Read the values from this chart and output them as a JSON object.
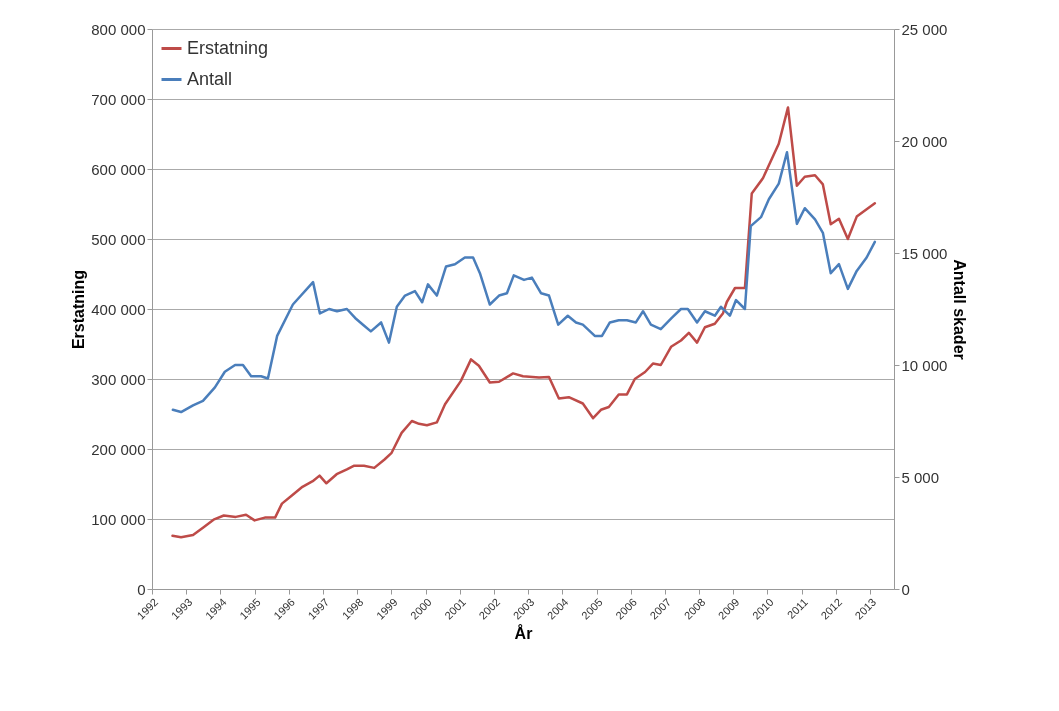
{
  "chart_data": {
    "type": "line",
    "xlabel": "År",
    "ylabel": "Erstatning",
    "y2label": "Antall skader",
    "xlim": [
      1992,
      2013.7
    ],
    "xticks": [
      1992,
      1993,
      1994,
      1995,
      1996,
      1997,
      1998,
      1999,
      2000,
      2001,
      2002,
      2003,
      2004,
      2005,
      2006,
      2007,
      2008,
      2009,
      2010,
      2011,
      2012,
      2013
    ],
    "ylim": [
      0,
      800000
    ],
    "yticks": [
      {
        "value": 0,
        "label": "0"
      },
      {
        "value": 100000,
        "label": "100 000"
      },
      {
        "value": 200000,
        "label": "200 000"
      },
      {
        "value": 300000,
        "label": "300 000"
      },
      {
        "value": 400000,
        "label": "400 000"
      },
      {
        "value": 500000,
        "label": "500 000"
      },
      {
        "value": 600000,
        "label": "600 000"
      },
      {
        "value": 700000,
        "label": "700 000"
      },
      {
        "value": 800000,
        "label": "800 000"
      }
    ],
    "y2lim": [
      0,
      25000
    ],
    "y2ticks": [
      {
        "value": 0,
        "label": "0"
      },
      {
        "value": 5000,
        "label": "5 000"
      },
      {
        "value": 10000,
        "label": "10 000"
      },
      {
        "value": 15000,
        "label": "15 000"
      },
      {
        "value": 20000,
        "label": "20 000"
      },
      {
        "value": 25000,
        "label": "25 000"
      }
    ],
    "grid": "y",
    "legend": "top left",
    "line_style": "solid",
    "series": [
      {
        "name": "Erstatning",
        "color": "#be4b48",
        "x": [
          1992.6,
          1992.85,
          1993.2,
          1993.5,
          1993.8,
          1994.1,
          1994.45,
          1994.75,
          1995.0,
          1995.3,
          1995.6,
          1995.8,
          1996.1,
          1996.4,
          1996.7,
          1996.9,
          1997.1,
          1997.4,
          1997.7,
          1997.9,
          1998.2,
          1998.5,
          1998.8,
          1999.0,
          1999.3,
          1999.6,
          1999.81,
          2000.04,
          2000.33,
          2000.57,
          2001.03,
          2001.33,
          2001.56,
          2001.88,
          2002.15,
          2002.56,
          2002.85,
          2003.32,
          2003.61,
          2003.9,
          2004.19,
          2004.6,
          2004.9,
          2005.13,
          2005.36,
          2005.65,
          2005.89,
          2006.12,
          2006.42,
          2006.65,
          2006.88,
          2007.18,
          2007.47,
          2007.7,
          2007.94,
          2008.17,
          2008.46,
          2008.7,
          2008.81,
          2009.05,
          2009.34,
          2009.54,
          2009.87,
          2010.33,
          2010.6,
          2010.86,
          2011.09,
          2011.39,
          2011.62,
          2011.85,
          2012.09,
          2012.35,
          2012.61,
          2013.14
        ],
        "values": [
          76000,
          74000,
          77000,
          88000,
          99000,
          105000,
          103000,
          106000,
          98000,
          102000,
          102000,
          122000,
          134000,
          146000,
          154000,
          162000,
          151000,
          164000,
          171000,
          176000,
          176000,
          173000,
          185000,
          194000,
          223000,
          240000,
          236000,
          234000,
          238000,
          264000,
          297000,
          328000,
          319000,
          295000,
          296000,
          308000,
          304000,
          302000,
          303000,
          272000,
          274000,
          265000,
          244000,
          256000,
          260000,
          278000,
          278000,
          300000,
          310000,
          322000,
          320000,
          346000,
          355000,
          366000,
          352000,
          374000,
          379000,
          394000,
          410000,
          430000,
          430000,
          565000,
          587000,
          636000,
          688000,
          576000,
          589000,
          591000,
          578000,
          521000,
          529000,
          500000,
          532000,
          551000
        ]
      },
      {
        "name": "Antall",
        "color": "#4a7ebb",
        "axis": "y2",
        "x": [
          1992.61,
          1992.85,
          1993.2,
          1993.49,
          1993.84,
          1994.13,
          1994.43,
          1994.66,
          1994.9,
          1995.19,
          1995.39,
          1995.66,
          1996.12,
          1996.71,
          1996.91,
          1997.18,
          1997.41,
          1997.7,
          1997.94,
          1998.17,
          1998.4,
          1998.7,
          1998.93,
          1999.16,
          1999.4,
          1999.69,
          1999.9,
          2000.07,
          2000.33,
          2000.6,
          2000.86,
          2001.15,
          2001.39,
          2001.59,
          2001.88,
          2002.15,
          2002.38,
          2002.58,
          2002.88,
          2003.11,
          2003.38,
          2003.61,
          2003.88,
          2004.16,
          2004.4,
          2004.6,
          2004.95,
          2005.16,
          2005.39,
          2005.65,
          2005.89,
          2006.15,
          2006.36,
          2006.59,
          2006.88,
          2007.2,
          2007.47,
          2007.67,
          2007.94,
          2008.17,
          2008.46,
          2008.64,
          2008.9,
          2009.08,
          2009.34,
          2009.51,
          2009.81,
          2010.04,
          2010.33,
          2010.57,
          2010.86,
          2011.09,
          2011.39,
          2011.62,
          2011.85,
          2012.09,
          2012.35,
          2012.61,
          2012.9,
          2013.14
        ],
        "values": [
          8000,
          7900,
          8200,
          8400,
          9000,
          9700,
          10000,
          10000,
          9500,
          9500,
          9400,
          11300,
          12700,
          13700,
          12300,
          12500,
          12400,
          12500,
          12100,
          11800,
          11500,
          11900,
          11000,
          12600,
          13100,
          13300,
          12800,
          13600,
          13100,
          14400,
          14500,
          14800,
          14800,
          14100,
          12700,
          13100,
          13200,
          14000,
          13800,
          13900,
          13200,
          13100,
          11800,
          12200,
          11900,
          11800,
          11300,
          11300,
          11900,
          12000,
          12000,
          11900,
          12400,
          11800,
          11600,
          12100,
          12500,
          12500,
          11900,
          12400,
          12200,
          12600,
          12200,
          12900,
          12500,
          16200,
          16600,
          17400,
          18100,
          19500,
          16300,
          17000,
          16500,
          15900,
          14100,
          14500,
          13400,
          14200,
          14800,
          15500
        ]
      }
    ]
  }
}
